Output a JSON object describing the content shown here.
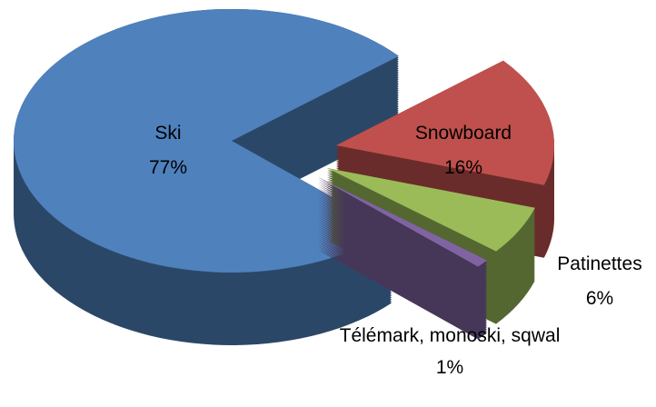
{
  "chart_data": {
    "type": "pie",
    "categories": [
      "Ski",
      "Snowboard",
      "Patinettes",
      "Télémark, monoski, sqwal"
    ],
    "values": [
      77,
      16,
      6,
      1
    ],
    "value_labels": [
      "77%",
      "16%",
      "6%",
      "1%"
    ],
    "colors": [
      "#4f81bd",
      "#c0504d",
      "#9bbb59",
      "#8064a2"
    ]
  }
}
